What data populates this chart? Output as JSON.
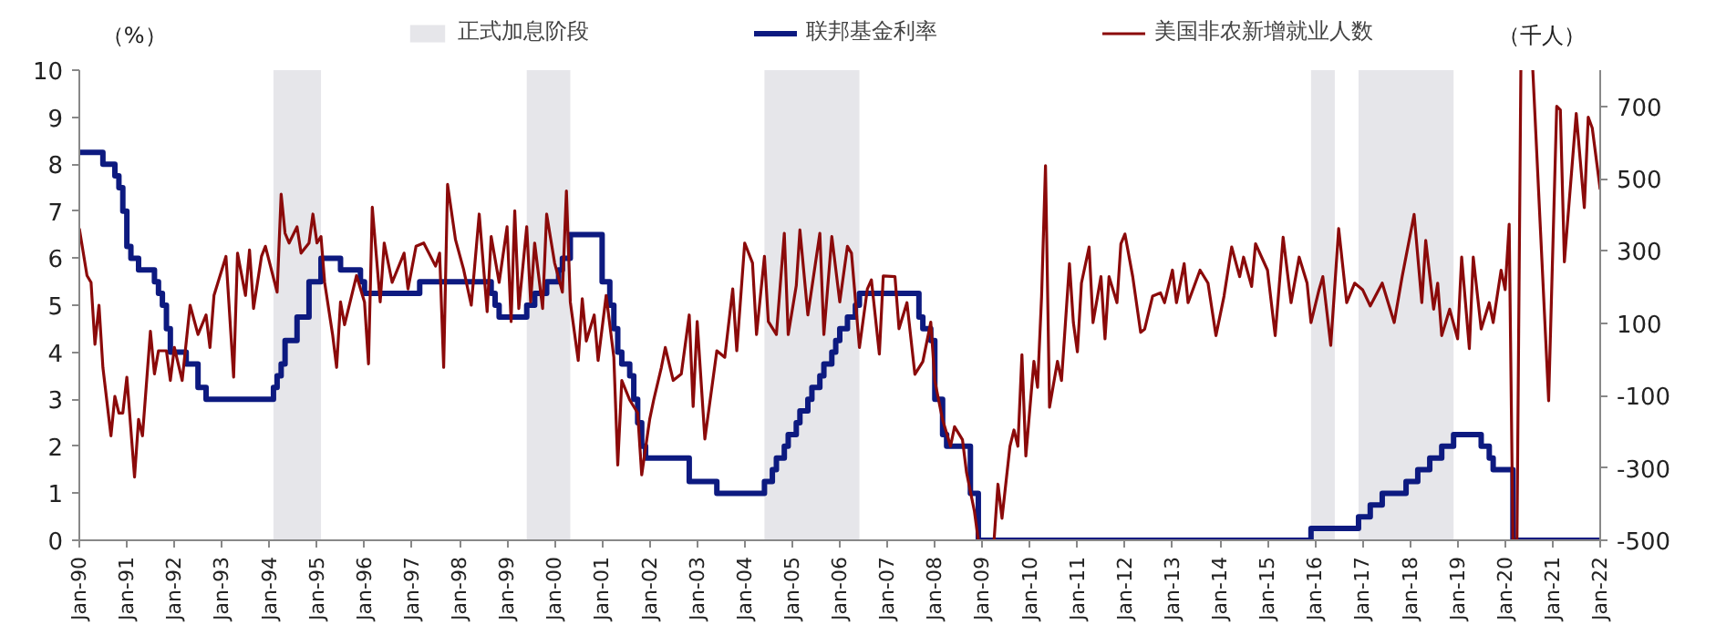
{
  "chart_data": {
    "type": "line",
    "ylabel": "（%）",
    "y2label": "（千人）",
    "xlim": [
      "1990-01",
      "2022-01"
    ],
    "xticks": [
      {
        "value": "1990-01",
        "label": "Jan-90"
      },
      {
        "value": "1991-01",
        "label": "Jan-91"
      },
      {
        "value": "1992-01",
        "label": "Jan-92"
      },
      {
        "value": "1993-01",
        "label": "Jan-93"
      },
      {
        "value": "1994-01",
        "label": "Jan-94"
      },
      {
        "value": "1995-01",
        "label": "Jan-95"
      },
      {
        "value": "1996-01",
        "label": "Jan-96"
      },
      {
        "value": "1997-01",
        "label": "Jan-97"
      },
      {
        "value": "1998-01",
        "label": "Jan-98"
      },
      {
        "value": "1999-01",
        "label": "Jan-99"
      },
      {
        "value": "2000-01",
        "label": "Jan-00"
      },
      {
        "value": "2001-01",
        "label": "Jan-01"
      },
      {
        "value": "2002-01",
        "label": "Jan-02"
      },
      {
        "value": "2003-01",
        "label": "Jan-03"
      },
      {
        "value": "2004-01",
        "label": "Jan-04"
      },
      {
        "value": "2005-01",
        "label": "Jan-05"
      },
      {
        "value": "2006-01",
        "label": "Jan-06"
      },
      {
        "value": "2007-01",
        "label": "Jan-07"
      },
      {
        "value": "2008-01",
        "label": "Jan-08"
      },
      {
        "value": "2009-01",
        "label": "Jan-09"
      },
      {
        "value": "2010-01",
        "label": "Jan-10"
      },
      {
        "value": "2011-01",
        "label": "Jan-11"
      },
      {
        "value": "2012-01",
        "label": "Jan-12"
      },
      {
        "value": "2013-01",
        "label": "Jan-13"
      },
      {
        "value": "2014-01",
        "label": "Jan-14"
      },
      {
        "value": "2015-01",
        "label": "Jan-15"
      },
      {
        "value": "2016-01",
        "label": "Jan-16"
      },
      {
        "value": "2017-01",
        "label": "Jan-17"
      },
      {
        "value": "2018-01",
        "label": "Jan-18"
      },
      {
        "value": "2019-01",
        "label": "Jan-19"
      },
      {
        "value": "2020-01",
        "label": "Jan-20"
      },
      {
        "value": "2021-01",
        "label": "Jan-21"
      },
      {
        "value": "2022-01",
        "label": "Jan-22"
      }
    ],
    "ylim": [
      0,
      10
    ],
    "yticks": [
      0,
      1,
      2,
      3,
      4,
      5,
      6,
      7,
      8,
      9,
      10
    ],
    "y2lim": [
      -500,
      800
    ],
    "y2ticks": [
      -500,
      -300,
      -100,
      100,
      300,
      500,
      700
    ],
    "grid": false,
    "legend": "top",
    "bands": [
      {
        "axis": "x",
        "from": "1994-02",
        "to": "1995-02",
        "label": "正式加息阶段",
        "color": "#e6e6ea"
      },
      {
        "axis": "x",
        "from": "1999-06",
        "to": "2000-05",
        "color": "#e6e6ea"
      },
      {
        "axis": "x",
        "from": "2004-06",
        "to": "2006-06",
        "color": "#e6e6ea"
      },
      {
        "axis": "x",
        "from": "2015-12",
        "to": "2016-06",
        "color": "#e6e6ea"
      },
      {
        "axis": "x",
        "from": "2016-12",
        "to": "2018-12",
        "color": "#e6e6ea"
      }
    ],
    "series": [
      {
        "name": "联邦基金利率",
        "type": "step",
        "color": "#0d1a80",
        "x": [
          "1990-01",
          "1990-07",
          "1990-10",
          "1990-11",
          "1990-12",
          "1991-01",
          "1991-02",
          "1991-04",
          "1991-08",
          "1991-09",
          "1991-10",
          "1991-11",
          "1991-12",
          "1992-04",
          "1992-07",
          "1992-09",
          "1994-02",
          "1994-03",
          "1994-04",
          "1994-05",
          "1994-08",
          "1994-11",
          "1995-02",
          "1995-07",
          "1995-12",
          "1996-01",
          "1997-03",
          "1998-09",
          "1998-10",
          "1998-11",
          "1999-06",
          "1999-08",
          "1999-11",
          "2000-02",
          "2000-03",
          "2000-05",
          "2001-01",
          "2001-03",
          "2001-04",
          "2001-05",
          "2001-06",
          "2001-08",
          "2001-09",
          "2001-10",
          "2001-11",
          "2001-12",
          "2002-11",
          "2003-06",
          "2004-06",
          "2004-08",
          "2004-09",
          "2004-11",
          "2004-12",
          "2005-02",
          "2005-03",
          "2005-05",
          "2005-06",
          "2005-08",
          "2005-09",
          "2005-11",
          "2005-12",
          "2006-01",
          "2006-03",
          "2006-05",
          "2006-06",
          "2007-09",
          "2007-10",
          "2007-12",
          "2008-01",
          "2008-03",
          "2008-04",
          "2008-10",
          "2008-12",
          "2015-12",
          "2016-12",
          "2017-03",
          "2017-06",
          "2017-12",
          "2018-03",
          "2018-06",
          "2018-09",
          "2018-12",
          "2019-07",
          "2019-09",
          "2019-10",
          "2020-03",
          "2022-01"
        ],
        "values": [
          8.25,
          8.0,
          7.75,
          7.5,
          7.0,
          6.25,
          6.0,
          5.75,
          5.5,
          5.25,
          5.0,
          4.5,
          4.0,
          3.75,
          3.25,
          3.0,
          3.25,
          3.5,
          3.75,
          4.25,
          4.75,
          5.5,
          6.0,
          5.75,
          5.5,
          5.25,
          5.5,
          5.25,
          5.0,
          4.75,
          5.0,
          5.25,
          5.5,
          5.75,
          6.0,
          6.5,
          5.5,
          5.0,
          4.5,
          4.0,
          3.75,
          3.5,
          3.0,
          2.5,
          2.0,
          1.75,
          1.25,
          1.0,
          1.25,
          1.5,
          1.75,
          2.0,
          2.25,
          2.5,
          2.75,
          3.0,
          3.25,
          3.5,
          3.75,
          4.0,
          4.25,
          4.5,
          4.75,
          5.0,
          5.25,
          4.75,
          4.5,
          4.25,
          3.0,
          2.25,
          2.0,
          1.0,
          0,
          0.25,
          0.5,
          0.75,
          1.0,
          1.25,
          1.5,
          1.75,
          2.0,
          2.25,
          2.0,
          1.75,
          1.5,
          0,
          0
        ]
      },
      {
        "name": "美国非农新增就业人数",
        "type": "line",
        "axis": "y2",
        "color": "#8b0a0a",
        "x": [
          "1990-01",
          "1990-03",
          "1990-04",
          "1990-05",
          "1990-06",
          "1990-07",
          "1990-09",
          "1990-10",
          "1990-11",
          "1990-12",
          "1991-01",
          "1991-03",
          "1991-04",
          "1991-05",
          "1991-07",
          "1991-08",
          "1991-09",
          "1991-11",
          "1991-12",
          "1992-01",
          "1992-03",
          "1992-05",
          "1992-07",
          "1992-09",
          "1992-10",
          "1992-11",
          "1993-02",
          "1993-04",
          "1993-05",
          "1993-07",
          "1993-08",
          "1993-09",
          "1993-11",
          "1993-12",
          "1994-03",
          "1994-04",
          "1994-05",
          "1994-06",
          "1994-08",
          "1994-09",
          "1994-11",
          "1994-12",
          "1995-01",
          "1995-02",
          "1995-03",
          "1995-05",
          "1995-06",
          "1995-07",
          "1995-08",
          "1995-11",
          "1996-01",
          "1996-02",
          "1996-03",
          "1996-05",
          "1996-06",
          "1996-08",
          "1996-11",
          "1996-12",
          "1997-02",
          "1997-04",
          "1997-07",
          "1997-08",
          "1997-09",
          "1997-10",
          "1997-12",
          "1998-02",
          "1998-04",
          "1998-06",
          "1998-08",
          "1998-09",
          "1998-11",
          "1999-01",
          "1999-02",
          "1999-03",
          "1999-04",
          "1999-06",
          "1999-07",
          "1999-08",
          "1999-10",
          "1999-11",
          "2000-01",
          "2000-03",
          "2000-04",
          "2000-05",
          "2000-07",
          "2000-08",
          "2000-09",
          "2000-11",
          "2000-12",
          "2001-02",
          "2001-04",
          "2001-05",
          "2001-06",
          "2001-08",
          "2001-10",
          "2001-11",
          "2002-01",
          "2002-02",
          "2002-04",
          "2002-05",
          "2002-07",
          "2002-09",
          "2002-11",
          "2002-12",
          "2003-01",
          "2003-03",
          "2003-06",
          "2003-08",
          "2003-10",
          "2003-11",
          "2004-01",
          "2004-03",
          "2004-04",
          "2004-06",
          "2004-07",
          "2004-09",
          "2004-11",
          "2004-12",
          "2005-02",
          "2005-03",
          "2005-05",
          "2005-08",
          "2005-09",
          "2005-11",
          "2006-01",
          "2006-03",
          "2006-04",
          "2006-06",
          "2006-08",
          "2006-09",
          "2006-11",
          "2006-12",
          "2007-03",
          "2007-04",
          "2007-06",
          "2007-08",
          "2007-10",
          "2007-12",
          "2008-01",
          "2008-03",
          "2008-05",
          "2008-06",
          "2008-08",
          "2008-09",
          "2008-11",
          "2008-12",
          "2009-02",
          "2009-04",
          "2009-05",
          "2009-06",
          "2009-08",
          "2009-09",
          "2009-10",
          "2009-11",
          "2009-12",
          "2010-02",
          "2010-03",
          "2010-04",
          "2010-05",
          "2010-06",
          "2010-08",
          "2010-09",
          "2010-11",
          "2010-12",
          "2011-01",
          "2011-02",
          "2011-04",
          "2011-05",
          "2011-07",
          "2011-08",
          "2011-09",
          "2011-11",
          "2011-12",
          "2012-01",
          "2012-03",
          "2012-05",
          "2012-06",
          "2012-08",
          "2012-10",
          "2012-11",
          "2013-01",
          "2013-02",
          "2013-04",
          "2013-05",
          "2013-08",
          "2013-10",
          "2013-12",
          "2014-02",
          "2014-04",
          "2014-06",
          "2014-07",
          "2014-09",
          "2014-10",
          "2015-01",
          "2015-03",
          "2015-05",
          "2015-07",
          "2015-09",
          "2015-11",
          "2015-12",
          "2016-02",
          "2016-03",
          "2016-05",
          "2016-07",
          "2016-09",
          "2016-11",
          "2017-01",
          "2017-03",
          "2017-06",
          "2017-09",
          "2017-11",
          "2018-02",
          "2018-04",
          "2018-05",
          "2018-07",
          "2018-08",
          "2018-09",
          "2018-11",
          "2019-01",
          "2019-02",
          "2019-04",
          "2019-05",
          "2019-07",
          "2019-09",
          "2019-10",
          "2019-12",
          "2020-01",
          "2020-02",
          "2020-03",
          "2020-04",
          "2020-05",
          "2020-06",
          "2020-08",
          "2020-12",
          "2021-02",
          "2021-03",
          "2021-04",
          "2021-07",
          "2021-09",
          "2021-10",
          "2021-11",
          "2022-01"
        ],
        "values": [
          362,
          232,
          213,
          42,
          150,
          -22,
          -211,
          -102,
          -148,
          -148,
          -49,
          -325,
          -166,
          -211,
          78,
          -40,
          24,
          24,
          -58,
          33,
          -58,
          150,
          69,
          123,
          33,
          177,
          285,
          -49,
          294,
          177,
          303,
          141,
          285,
          313,
          186,
          457,
          349,
          322,
          367,
          294,
          322,
          402,
          322,
          340,
          213,
          69,
          -22,
          159,
          96,
          232,
          159,
          -12,
          421,
          159,
          322,
          213,
          294,
          195,
          313,
          322,
          258,
          294,
          -22,
          484,
          331,
          249,
          150,
          402,
          132,
          340,
          213,
          367,
          105,
          411,
          141,
          367,
          159,
          322,
          141,
          402,
          267,
          186,
          466,
          159,
          -3,
          168,
          51,
          123,
          -3,
          177,
          6,
          -292,
          -58,
          -112,
          -148,
          -319,
          -166,
          -112,
          -22,
          33,
          -58,
          -40,
          123,
          -130,
          105,
          -220,
          24,
          6,
          195,
          24,
          322,
          267,
          69,
          285,
          105,
          69,
          349,
          69,
          204,
          358,
          123,
          349,
          69,
          340,
          159,
          313,
          294,
          33,
          195,
          220,
          15,
          231,
          229,
          85,
          157,
          -41,
          -6,
          103,
          -59,
          -167,
          -240,
          -186,
          -222,
          -312,
          -420,
          -500,
          null,
          -500,
          -345,
          -439,
          -240,
          -195,
          -240,
          13,
          -267,
          -5,
          -77,
          175,
          536,
          -132,
          -5,
          -58,
          265,
          102,
          21,
          211,
          311,
          102,
          229,
          57,
          229,
          157,
          320,
          347,
          229,
          75,
          84,
          175,
          184,
          157,
          247,
          157,
          265,
          157,
          247,
          211,
          66,
          175,
          311,
          229,
          283,
          202,
          320,
          247,
          66,
          338,
          157,
          283,
          211,
          102,
          193,
          229,
          39,
          362,
          157,
          211,
          193,
          148,
          211,
          102,
          229,
          401,
          157,
          329,
          139,
          211,
          66,
          139,
          57,
          283,
          30,
          283,
          84,
          157,
          102,
          247,
          193,
          374,
          -500,
          -500,
          800,
          null,
          800,
          -114,
          700,
          690,
          270,
          680,
          420,
          670,
          640,
          470
        ]
      }
    ]
  }
}
